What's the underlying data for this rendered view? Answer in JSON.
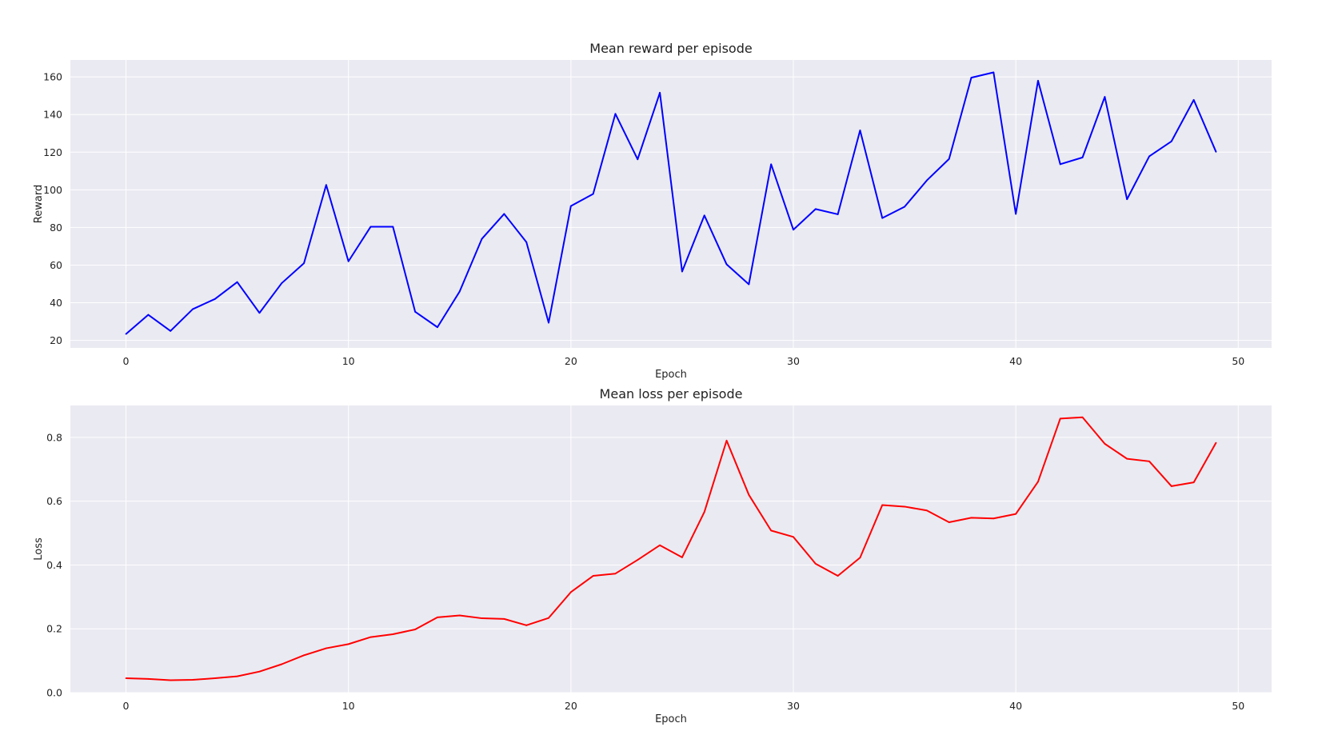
{
  "chart_data": [
    {
      "type": "line",
      "title": "Mean reward per episode",
      "xlabel": "Epoch",
      "ylabel": "Reward",
      "xlim": [
        -2.5,
        51.5
      ],
      "ylim": [
        16,
        169
      ],
      "xticks": [
        0,
        10,
        20,
        30,
        40,
        50
      ],
      "yticks": [
        20,
        40,
        60,
        80,
        100,
        120,
        140,
        160
      ],
      "grid": true,
      "x": [
        0,
        1,
        2,
        3,
        4,
        5,
        6,
        7,
        8,
        9,
        10,
        11,
        12,
        13,
        14,
        15,
        16,
        17,
        18,
        19,
        20,
        21,
        22,
        23,
        24,
        25,
        26,
        27,
        28,
        29,
        30,
        31,
        32,
        33,
        34,
        35,
        36,
        37,
        38,
        39,
        40,
        41,
        42,
        43,
        44,
        45,
        46,
        47,
        48,
        49
      ],
      "series": [
        {
          "color": "#0000ff",
          "values": [
            23.4,
            33.6,
            25.0,
            36.6,
            42.0,
            51.0,
            34.6,
            50.4,
            61.0,
            102.6,
            62.0,
            80.4,
            80.4,
            35.2,
            27.0,
            46.0,
            74.0,
            87.2,
            72.2,
            29.4,
            91.4,
            97.8,
            140.4,
            116.2,
            151.6,
            56.6,
            86.4,
            60.4,
            49.8,
            113.6,
            78.8,
            89.8,
            87.0,
            131.6,
            85.0,
            91.0,
            105.0,
            116.4,
            159.6,
            162.4,
            87.2,
            158.0,
            113.6,
            117.2,
            149.4,
            95.0,
            117.8,
            125.8,
            147.8,
            120.2
          ]
        }
      ]
    },
    {
      "type": "line",
      "title": "Mean loss per episode",
      "xlabel": "Epoch",
      "ylabel": "Loss",
      "xlim": [
        -2.5,
        51.5
      ],
      "ylim": [
        0.0,
        0.9
      ],
      "xticks": [
        0,
        10,
        20,
        30,
        40,
        50
      ],
      "yticks": [
        "0.0",
        "0.2",
        "0.4",
        "0.6",
        "0.8"
      ],
      "grid": true,
      "x": [
        0,
        1,
        2,
        3,
        4,
        5,
        6,
        7,
        8,
        9,
        10,
        11,
        12,
        13,
        14,
        15,
        16,
        17,
        18,
        19,
        20,
        21,
        22,
        23,
        24,
        25,
        26,
        27,
        28,
        29,
        30,
        31,
        32,
        33,
        34,
        35,
        36,
        37,
        38,
        39,
        40,
        41,
        42,
        43,
        44,
        45,
        46,
        47,
        48,
        49
      ],
      "series": [
        {
          "color": "#ff0000",
          "values": [
            0.045,
            0.043,
            0.039,
            0.04,
            0.045,
            0.051,
            0.066,
            0.089,
            0.117,
            0.139,
            0.152,
            0.174,
            0.183,
            0.198,
            0.236,
            0.242,
            0.233,
            0.231,
            0.211,
            0.234,
            0.315,
            0.366,
            0.373,
            0.416,
            0.462,
            0.424,
            0.566,
            0.79,
            0.62,
            0.508,
            0.488,
            0.404,
            0.366,
            0.423,
            0.588,
            0.583,
            0.571,
            0.534,
            0.548,
            0.546,
            0.56,
            0.661,
            0.859,
            0.863,
            0.78,
            0.733,
            0.725,
            0.647,
            0.659,
            0.783
          ]
        }
      ]
    }
  ]
}
